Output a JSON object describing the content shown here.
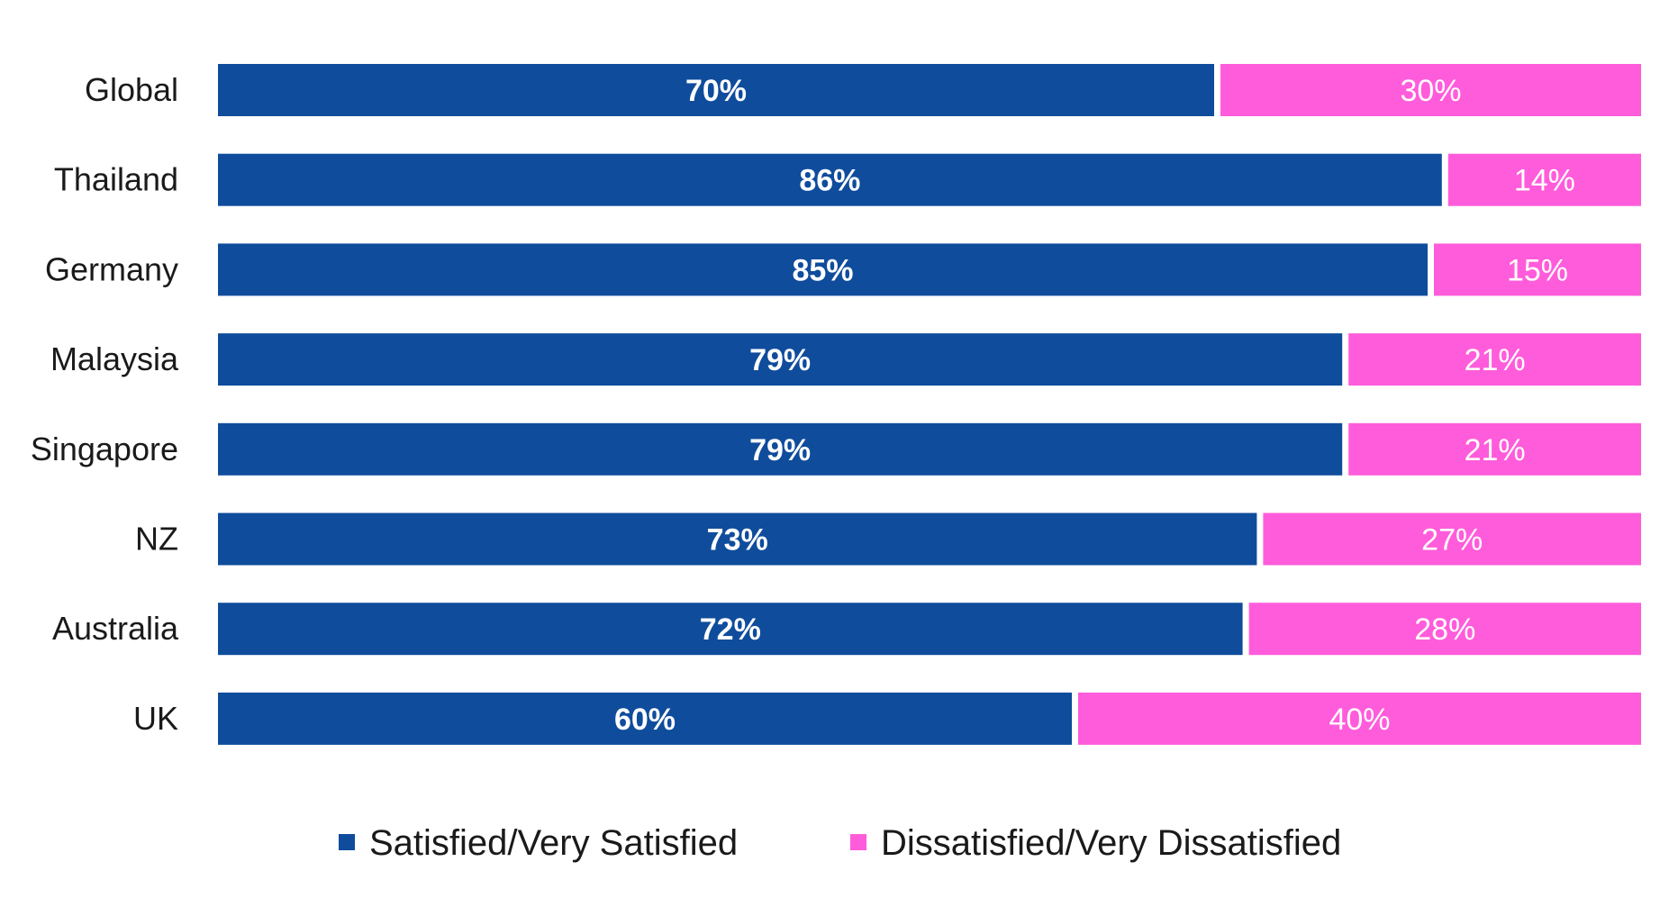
{
  "chart_data": {
    "type": "bar",
    "orientation": "horizontal",
    "stacked": true,
    "categories": [
      "Global",
      "Thailand",
      "Germany",
      "Malaysia",
      "Singapore",
      "NZ",
      "Australia",
      "UK"
    ],
    "series": [
      {
        "name": "Satisfied/Very Satisfied",
        "color": "#0F4C9C",
        "values": [
          70,
          86,
          85,
          79,
          79,
          73,
          72,
          60
        ],
        "labels": [
          "70%",
          "86%",
          "85%",
          "79%",
          "79%",
          "73%",
          "72%",
          "60%"
        ]
      },
      {
        "name": "Dissatisfied/Very Dissatisfied",
        "color": "#FF5CDB",
        "values": [
          30,
          14,
          15,
          21,
          21,
          27,
          28,
          40
        ],
        "labels": [
          "30%",
          "14%",
          "15%",
          "21%",
          "21%",
          "27%",
          "28%",
          "40%"
        ]
      }
    ],
    "xlim": [
      0,
      100
    ],
    "grid": false,
    "legend_position": "bottom"
  }
}
